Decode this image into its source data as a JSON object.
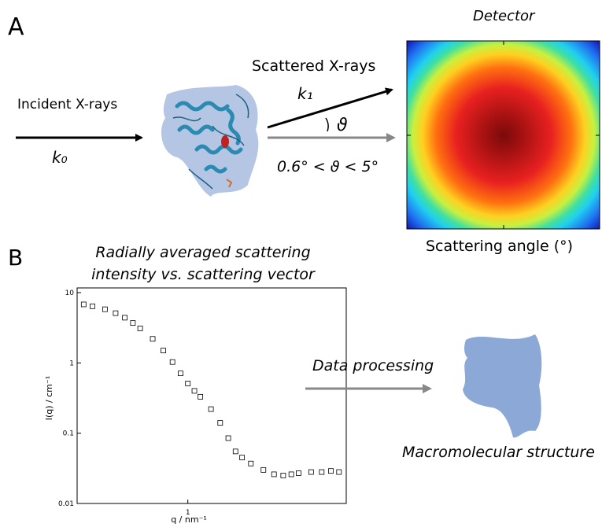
{
  "panel_a": {
    "label": "A",
    "incident": "Incident X-rays",
    "k0": "k₀",
    "scattered": "Scattered X-rays",
    "k1": "k₁",
    "theta": "ϑ",
    "range": "0.6° < ϑ < 5°",
    "detector": "Detector",
    "detector_axis": "Scattering angle (°)"
  },
  "panel_b": {
    "label": "B",
    "process": "Data processing",
    "structure": "Macromolecular structure"
  },
  "chart_data": {
    "type": "scatter",
    "title": [
      "Radially averaged scattering",
      "intensity vs. scattering vector"
    ],
    "x_label": "q / nm⁻¹",
    "y_label": "I(q) / cm⁻¹",
    "x": [
      0.22,
      0.25,
      0.3,
      0.35,
      0.4,
      0.45,
      0.5,
      0.6,
      0.7,
      0.8,
      0.9,
      1.0,
      1.1,
      1.2,
      1.4,
      1.6,
      1.8,
      2.0,
      2.2,
      2.5,
      3.0,
      3.5,
      4.0,
      4.5,
      5.0,
      6.0,
      7.0,
      8.0,
      9.0
    ],
    "values": [
      6.8,
      6.4,
      5.8,
      5.1,
      4.4,
      3.7,
      3.1,
      2.2,
      1.5,
      1.03,
      0.71,
      0.51,
      0.4,
      0.33,
      0.22,
      0.14,
      0.085,
      0.055,
      0.045,
      0.037,
      0.03,
      0.026,
      0.025,
      0.026,
      0.027,
      0.028,
      0.028,
      0.029,
      0.028
    ],
    "color": "#000000",
    "xlim": [
      0.2,
      10
    ],
    "ylim": [
      0.01,
      10
    ],
    "xticks": [
      1
    ],
    "yticks": [
      0.01,
      0.1,
      1,
      10
    ],
    "xlog": true,
    "ylog": true
  }
}
